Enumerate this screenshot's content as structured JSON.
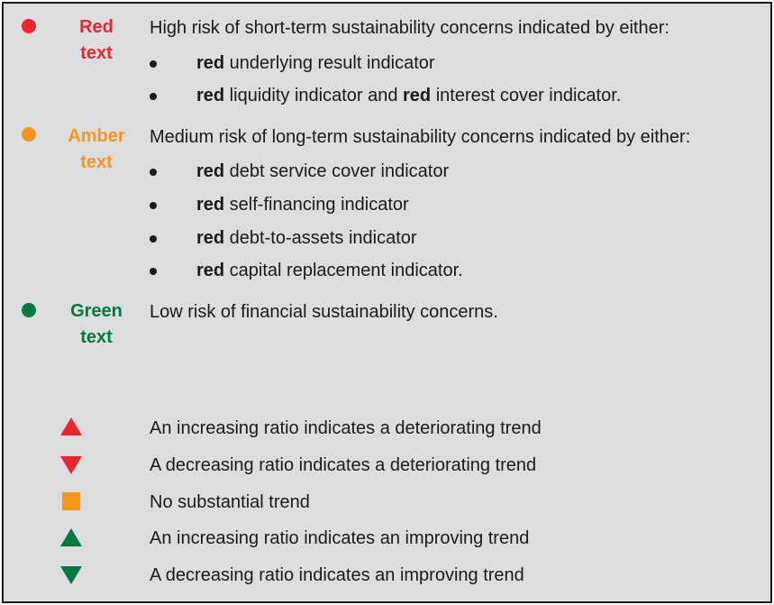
{
  "colors": {
    "red": "#e8262b",
    "amber": "#f7941d",
    "green": "#007a3d",
    "panel_bg": "#dcddde",
    "text": "#1a1a1a"
  },
  "legend": {
    "red": {
      "label_line1": "Red",
      "label_line2": "text",
      "description": "High risk of short-term sustainability concerns indicated by either:",
      "bullets": [
        {
          "bold": "red",
          "rest": " underlying result indicator",
          "bold2": "",
          "rest2": ""
        },
        {
          "bold": "red",
          "rest": " liquidity indicator and ",
          "bold2": "red",
          "rest2": " interest cover indicator."
        }
      ]
    },
    "amber": {
      "label_line1": "Amber",
      "label_line2": "text",
      "description": "Medium risk of long-term sustainability concerns indicated by either:",
      "bullets": [
        {
          "bold": "red",
          "rest": " debt service cover indicator"
        },
        {
          "bold": "red",
          "rest": " self-financing indicator"
        },
        {
          "bold": "red",
          "rest": " debt-to-assets indicator"
        },
        {
          "bold": "red",
          "rest": " capital replacement indicator."
        }
      ]
    },
    "green": {
      "label_line1": "Green",
      "label_line2": "text",
      "description": "Low risk of financial sustainability concerns."
    }
  },
  "trends": [
    {
      "icon": "red-up-triangle-icon",
      "text": "An increasing ratio indicates a deteriorating trend"
    },
    {
      "icon": "red-down-triangle-icon",
      "text": "A decreasing ratio indicates a deteriorating trend"
    },
    {
      "icon": "amber-square-icon",
      "text": "No substantial trend"
    },
    {
      "icon": "green-up-triangle-icon",
      "text": "An increasing ratio indicates an improving trend"
    },
    {
      "icon": "green-down-triangle-icon",
      "text": "A decreasing ratio indicates an improving trend"
    }
  ]
}
